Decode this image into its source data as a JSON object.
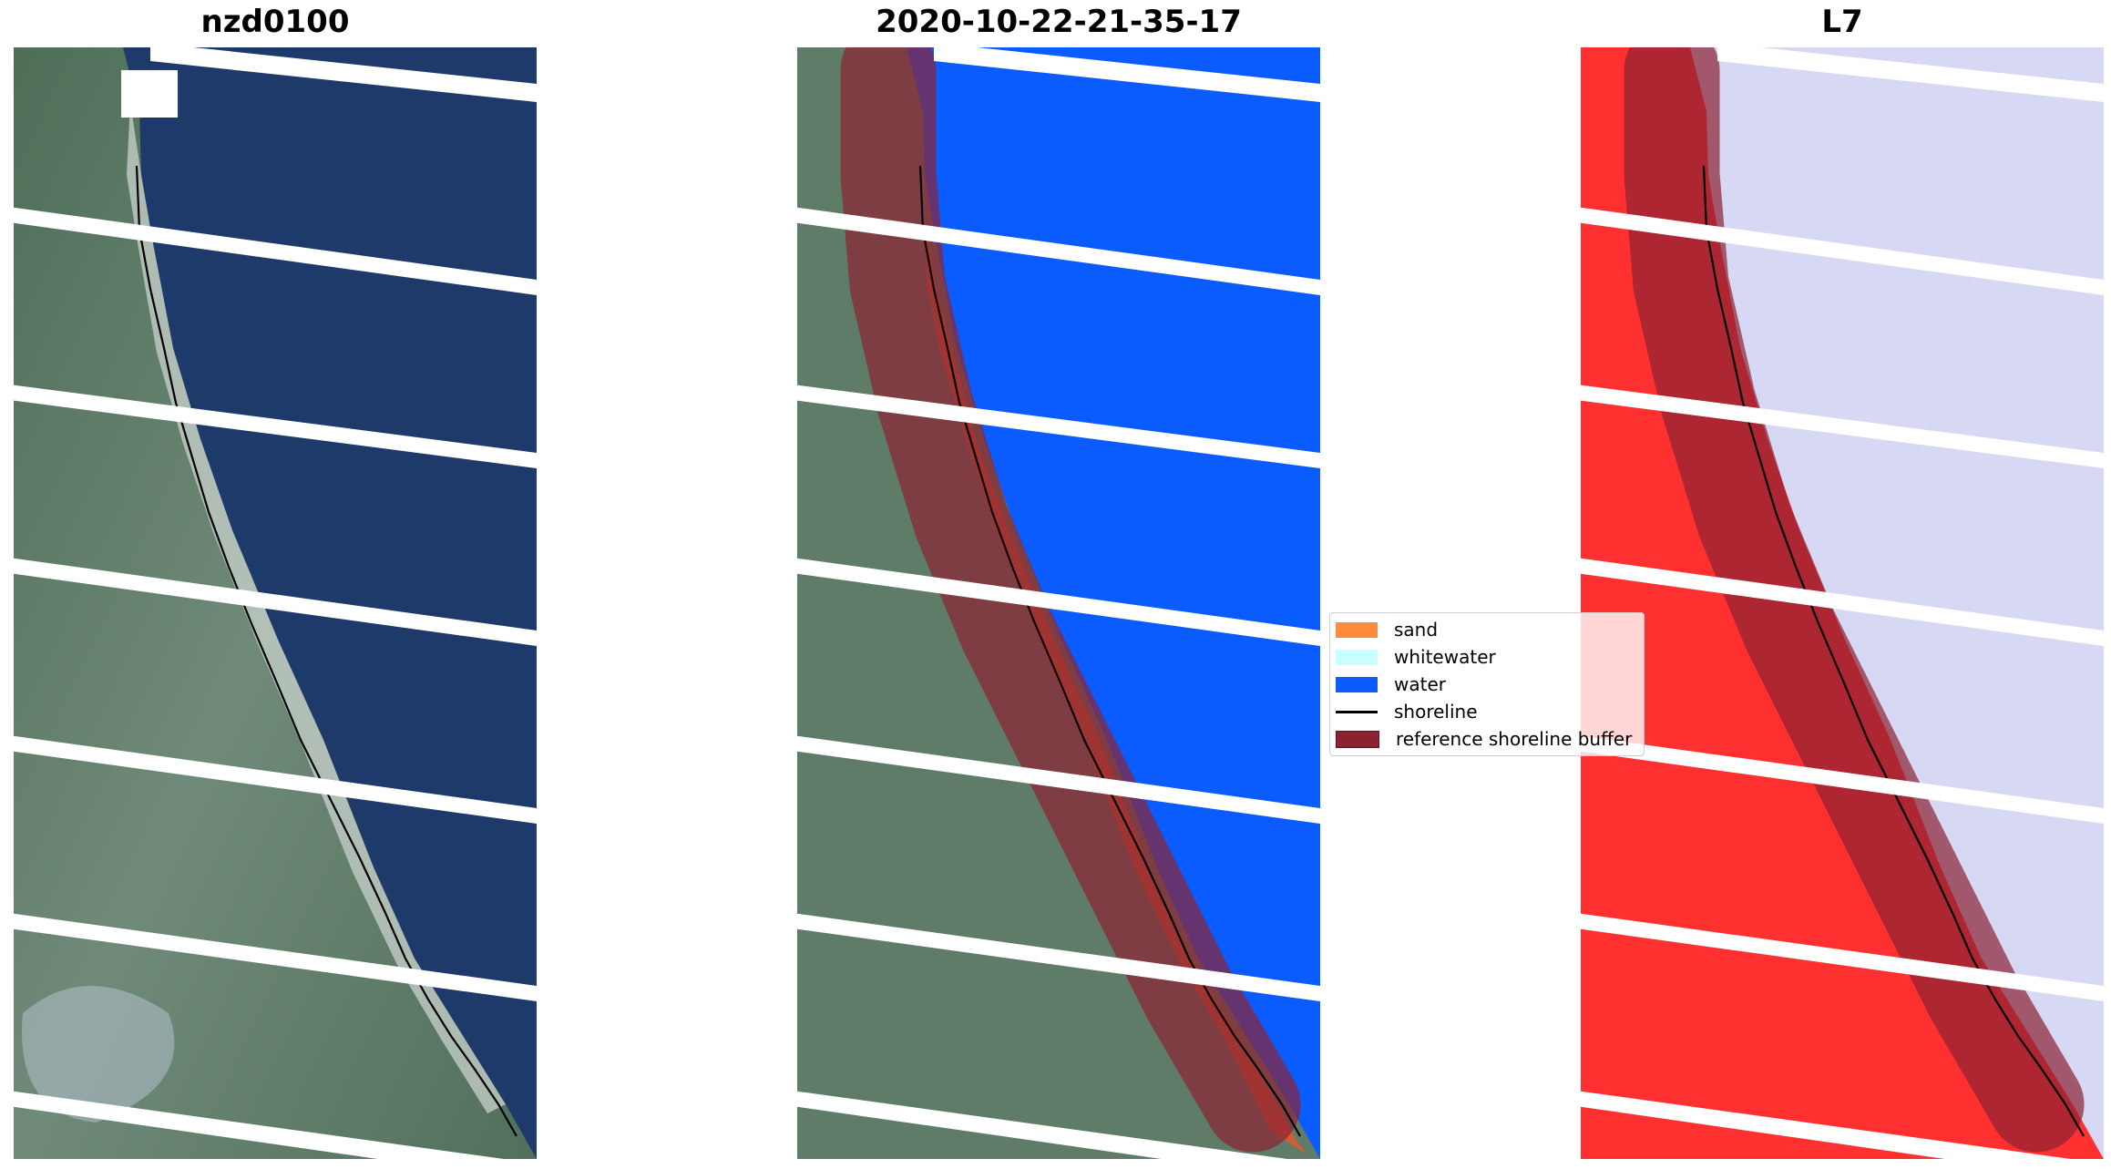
{
  "panels": [
    {
      "title": "nzd0100",
      "kind": "rgb"
    },
    {
      "title": "2020-10-22-21-35-17",
      "kind": "classified"
    },
    {
      "title": "L7",
      "kind": "index"
    }
  ],
  "legend": {
    "items": [
      {
        "label": "sand",
        "color": "#ff8c3a"
      },
      {
        "label": "whitewater",
        "color": "#c8ffff"
      },
      {
        "label": "water",
        "color": "#0a5cff"
      },
      {
        "label": "shoreline",
        "color": "#000000"
      },
      {
        "label": "reference shoreline buffer",
        "color": "#8b2232"
      }
    ]
  },
  "colors": {
    "water_dark": "#1e3a6a",
    "land": "#5a7a62",
    "water_class": "#0a5cff",
    "buffer": "#8b2232",
    "land_index": "#ff3030",
    "water_index": "#d6d8f4"
  }
}
